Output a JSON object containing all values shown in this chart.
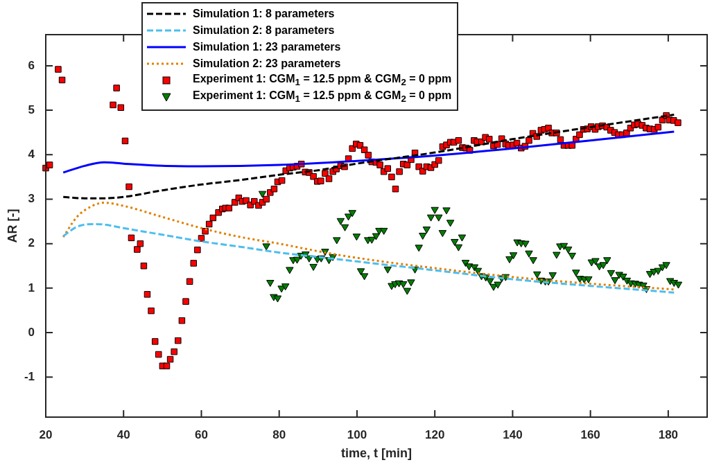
{
  "chart_data": {
    "type": "line",
    "xlabel": "time, t [min]",
    "ylabel": "AR [-]",
    "xlim": [
      20,
      190
    ],
    "xticks": [
      20,
      40,
      60,
      80,
      100,
      120,
      140,
      160,
      180
    ],
    "ylim": [
      -1.9,
      6.7
    ],
    "yticks": [
      -1,
      0,
      1,
      2,
      3,
      4,
      5,
      6
    ],
    "grid": false,
    "legend": "top",
    "series": [
      {
        "name": "Simulation 1: 8 parameters",
        "type": "line",
        "color": "#000000",
        "line_style": "dashed",
        "marker": "none",
        "x": [
          24.5,
          30,
          35,
          40,
          50,
          60,
          70,
          80,
          90,
          100,
          120,
          140,
          160,
          181.5
        ],
        "values": [
          3.05,
          3.02,
          3.02,
          3.05,
          3.2,
          3.33,
          3.43,
          3.55,
          3.65,
          3.8,
          4.05,
          4.35,
          4.62,
          4.9
        ]
      },
      {
        "name": "Simulation 2: 8 parameters",
        "type": "line",
        "color": "#4dbeee",
        "line_style": "dashed",
        "marker": "none",
        "x": [
          24.5,
          28,
          32,
          35,
          40,
          50,
          60,
          70,
          80,
          90,
          100,
          120,
          140,
          160,
          181.5
        ],
        "values": [
          2.17,
          2.38,
          2.44,
          2.43,
          2.35,
          2.2,
          2.05,
          1.93,
          1.8,
          1.7,
          1.6,
          1.4,
          1.2,
          1.05,
          0.9
        ]
      },
      {
        "name": "Simulation 1: 23 parameters",
        "type": "line",
        "color": "#0000ff",
        "line_style": "solid",
        "marker": "none",
        "x": [
          24.5,
          30,
          35,
          40,
          50,
          60,
          80,
          100,
          120,
          140,
          160,
          181.5
        ],
        "values": [
          3.6,
          3.75,
          3.83,
          3.8,
          3.75,
          3.74,
          3.77,
          3.86,
          3.98,
          4.14,
          4.32,
          4.52
        ]
      },
      {
        "name": "Simulation 2: 23 parameters",
        "type": "line",
        "color": "#e08000",
        "line_style": "dotted",
        "marker": "none",
        "x": [
          24.5,
          28,
          32,
          35,
          40,
          50,
          60,
          70,
          80,
          90,
          100,
          120,
          140,
          160,
          181.5
        ],
        "values": [
          2.15,
          2.6,
          2.85,
          2.92,
          2.85,
          2.6,
          2.35,
          2.15,
          2.0,
          1.83,
          1.68,
          1.45,
          1.25,
          1.1,
          0.97
        ]
      },
      {
        "name": "Experiment 1: CGM$_{1}$ = 12.5 ppm & CGM$_{2}$ = 0 ppm",
        "type": "scatter",
        "color": "#ff0000",
        "marker": "square",
        "x": [
          20,
          21,
          23.2,
          24.2,
          37.3,
          38.2,
          39.3,
          40.4,
          41.4,
          42,
          43.5,
          44.3,
          45.2,
          46.1,
          47.1,
          48.1,
          49,
          50,
          51.1,
          52,
          53,
          54,
          55,
          56,
          57,
          58,
          59,
          60,
          61,
          62,
          63,
          64.4,
          65.4,
          66.2,
          67.1,
          68.6,
          69.6,
          70.5,
          71.5,
          72.6,
          73.6,
          74.7,
          75.7,
          76.7,
          77.7,
          78.7,
          79.6,
          80.7,
          81.7,
          82.7,
          83.6,
          84.6,
          85.7,
          86.7,
          87.7,
          88.8,
          89.8,
          90.7,
          91.8,
          92.8,
          93.8,
          94.7,
          95.8,
          96.8,
          97.8,
          98.8,
          99.8,
          100.8,
          101.9,
          102.9,
          103.8,
          104.9,
          105.9,
          106.9,
          107.9,
          108.9,
          109.9,
          110.9,
          111.9,
          112.9,
          113.9,
          114.9,
          115.9,
          116.9,
          117.9,
          119,
          120,
          121,
          122,
          123,
          124,
          124.9,
          126.1,
          127.1,
          128,
          129,
          130.1,
          130.9,
          132,
          133,
          134,
          135.1,
          136.1,
          137.2,
          138.2,
          139,
          140.1,
          141.1,
          142.2,
          143.2,
          144.2,
          145.2,
          146.2,
          147.3,
          148.2,
          149.2,
          150.1,
          151.3,
          152.3,
          153.2,
          154.3,
          155.3,
          156.3,
          157.2,
          158.2,
          159.2,
          160.2,
          161.2,
          162,
          163.1,
          164.2,
          165.2,
          166.2,
          167.2,
          168.2,
          169.3,
          170.3,
          171.3,
          172.2,
          173.3,
          174.3,
          175.3,
          176.4,
          177.4,
          178.5,
          179.5,
          180.3,
          181.4,
          182.5
        ],
        "values": [
          3.7,
          3.77,
          5.92,
          5.68,
          5.12,
          5.5,
          5.06,
          4.31,
          3.28,
          2.13,
          1.87,
          2.0,
          1.5,
          0.86,
          0.49,
          -0.2,
          -0.49,
          -0.75,
          -0.75,
          -0.6,
          -0.43,
          -0.18,
          0.27,
          0.7,
          1.15,
          1.56,
          1.86,
          2.12,
          2.28,
          2.44,
          2.58,
          2.7,
          2.78,
          2.8,
          2.8,
          2.93,
          3.03,
          2.95,
          2.97,
          2.87,
          2.95,
          2.86,
          2.93,
          3.0,
          3.15,
          3.23,
          3.39,
          3.42,
          3.64,
          3.7,
          3.72,
          3.74,
          3.79,
          3.61,
          3.6,
          3.51,
          3.4,
          3.41,
          3.58,
          3.46,
          3.62,
          3.68,
          3.75,
          3.73,
          3.91,
          4.14,
          4.24,
          4.21,
          4.11,
          3.99,
          3.84,
          3.83,
          3.77,
          3.62,
          3.69,
          3.5,
          3.23,
          3.62,
          3.79,
          3.77,
          3.89,
          4.04,
          3.73,
          3.63,
          3.73,
          3.71,
          3.78,
          3.87,
          4.18,
          4.22,
          4.28,
          4.28,
          4.32,
          4.16,
          4.15,
          4.1,
          4.32,
          4.29,
          4.29,
          4.39,
          4.35,
          4.2,
          4.23,
          4.36,
          4.24,
          4.21,
          4.22,
          4.26,
          4.15,
          4.19,
          4.32,
          4.48,
          4.41,
          4.55,
          4.57,
          4.6,
          4.49,
          4.49,
          4.34,
          4.21,
          4.21,
          4.21,
          4.35,
          4.45,
          4.57,
          4.58,
          4.63,
          4.57,
          4.63,
          4.65,
          4.62,
          4.55,
          4.5,
          4.45,
          4.45,
          4.49,
          4.6,
          4.67,
          4.69,
          4.66,
          4.6,
          4.58,
          4.57,
          4.62,
          4.78,
          4.88,
          4.78,
          4.77,
          4.72
        ]
      },
      {
        "name": "Experiment 1: CGM$_{1}$ = 12.5 ppm & CGM$_{2}$ = 0 ppm",
        "type": "scatter",
        "color": "#007f00",
        "marker": "triangle",
        "x": [
          75.7,
          76.7,
          77.7,
          78.6,
          79.6,
          80.6,
          81.6,
          82.7,
          83.6,
          84.6,
          85.6,
          86.8,
          87.7,
          88.8,
          89.8,
          90.8,
          91.8,
          92.8,
          93.8,
          94.8,
          95.8,
          96.9,
          97.8,
          98.8,
          99.9,
          101,
          101.9,
          102.8,
          103.8,
          104.9,
          105.7,
          106.9,
          107.9,
          108.9,
          109.8,
          110.8,
          111.9,
          112.9,
          113.9,
          114.9,
          115.9,
          116.9,
          117.9,
          119,
          120,
          121,
          122,
          123,
          124,
          125.1,
          126.1,
          127,
          127.9,
          128.8,
          130.2,
          131.1,
          132,
          133.1,
          134.2,
          135.1,
          136.2,
          137.2,
          138.2,
          139.2,
          140.2,
          141.2,
          142.2,
          143.3,
          144.2,
          145.3,
          146.3,
          147.3,
          148.4,
          149.2,
          150.3,
          151.3,
          152.2,
          153.2,
          154.3,
          155.3,
          156.3,
          157.3,
          158.4,
          159.5,
          160.3,
          161.3,
          162.3,
          163.3,
          164.3,
          165.3,
          166.3,
          167.4,
          168.4,
          169.4,
          170.4,
          171.5,
          172.5,
          173.6,
          174.4,
          175.3,
          176.3,
          177.4,
          178.5,
          179.5,
          180.5,
          181.5,
          182.6
        ],
        "values": [
          3.13,
          1.95,
          1.13,
          0.81,
          0.78,
          1.0,
          1.05,
          1.42,
          1.64,
          1.65,
          1.74,
          1.77,
          1.68,
          1.49,
          1.66,
          1.68,
          1.83,
          1.64,
          1.71,
          2.09,
          2.52,
          2.38,
          2.62,
          2.7,
          2.17,
          1.39,
          1.28,
          2.09,
          2.1,
          2.18,
          2.3,
          2.3,
          1.43,
          1.06,
          1.1,
          1.12,
          1.1,
          0.95,
          1.14,
          1.43,
          1.92,
          2.19,
          2.33,
          2.6,
          2.77,
          2.6,
          2.25,
          2.76,
          2.48,
          2.05,
          1.93,
          2.15,
          1.58,
          1.5,
          1.48,
          1.4,
          1.28,
          1.25,
          1.17,
          1.04,
          1.09,
          1.23,
          1.26,
          1.66,
          1.75,
          2.04,
          2.02,
          2.01,
          1.79,
          1.64,
          1.32,
          1.18,
          1.16,
          1.16,
          1.3,
          1.76,
          1.95,
          1.96,
          1.88,
          1.74,
          1.36,
          1.22,
          1.21,
          1.21,
          1.59,
          1.62,
          1.5,
          1.53,
          1.64,
          1.35,
          1.19,
          1.31,
          1.27,
          1.18,
          1.12,
          1.11,
          1.09,
          1.07,
          0.99,
          1.33,
          1.38,
          1.4,
          1.48,
          1.53,
          1.17,
          1.13,
          1.09
        ]
      }
    ]
  }
}
